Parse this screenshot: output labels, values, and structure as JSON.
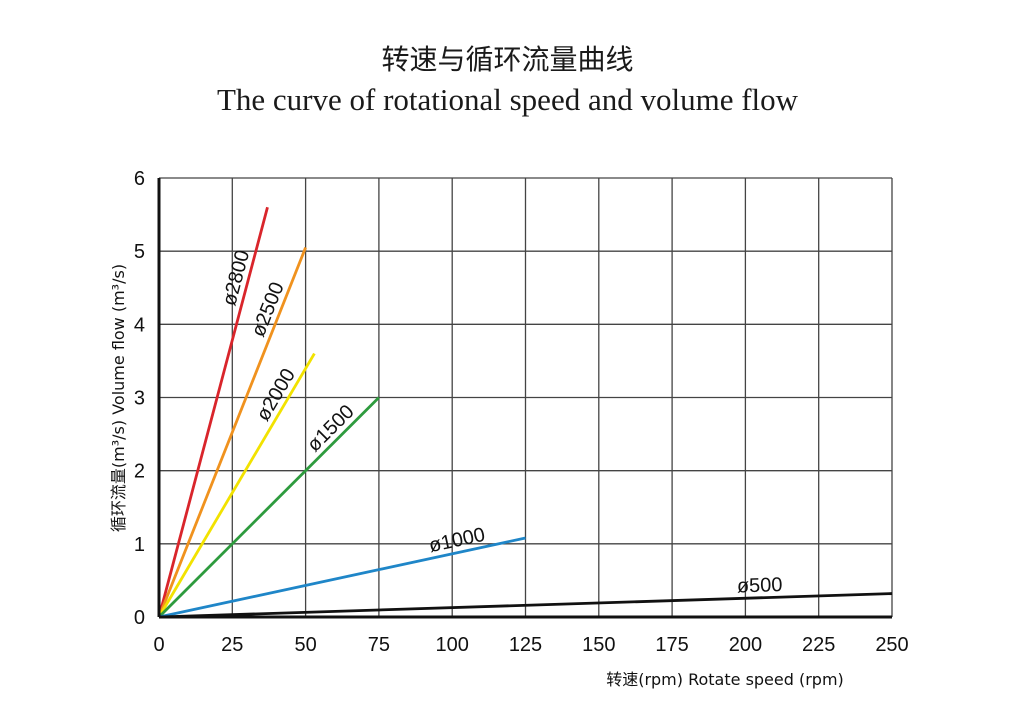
{
  "chart_data": {
    "type": "line",
    "title": "转速与循环流量曲线",
    "subtitle": "The curve of rotational speed and volume flow",
    "xlabel": "转速(rpm) Rotate speed (rpm)",
    "ylabel": "循环流量(m³/s) Volume flow (m³/s)",
    "xlim": [
      0,
      250
    ],
    "ylim": [
      0,
      6
    ],
    "grid": true,
    "x_ticks": [
      "0",
      "25",
      "50",
      "75",
      "100",
      "125",
      "150",
      "175",
      "200",
      "225",
      "250"
    ],
    "y_ticks": [
      "0",
      "1",
      "2",
      "3",
      "4",
      "5",
      "6"
    ],
    "series": [
      {
        "name": "ø2800",
        "color": "#d9252b",
        "x": [
          0,
          37
        ],
        "y": [
          0,
          5.6
        ]
      },
      {
        "name": "ø2500",
        "color": "#f0921e",
        "x": [
          0,
          50
        ],
        "y": [
          0,
          5.05
        ]
      },
      {
        "name": "ø2000",
        "color": "#f2e200",
        "x": [
          0,
          53
        ],
        "y": [
          0,
          3.6
        ]
      },
      {
        "name": "ø1500",
        "color": "#2e9b3e",
        "x": [
          0,
          75
        ],
        "y": [
          0,
          3.0
        ]
      },
      {
        "name": "ø1000",
        "color": "#1f86c8",
        "x": [
          0,
          125
        ],
        "y": [
          0,
          1.08
        ]
      },
      {
        "name": "ø500",
        "color": "#111111",
        "x": [
          0,
          250
        ],
        "y": [
          0,
          0.32
        ]
      }
    ]
  }
}
